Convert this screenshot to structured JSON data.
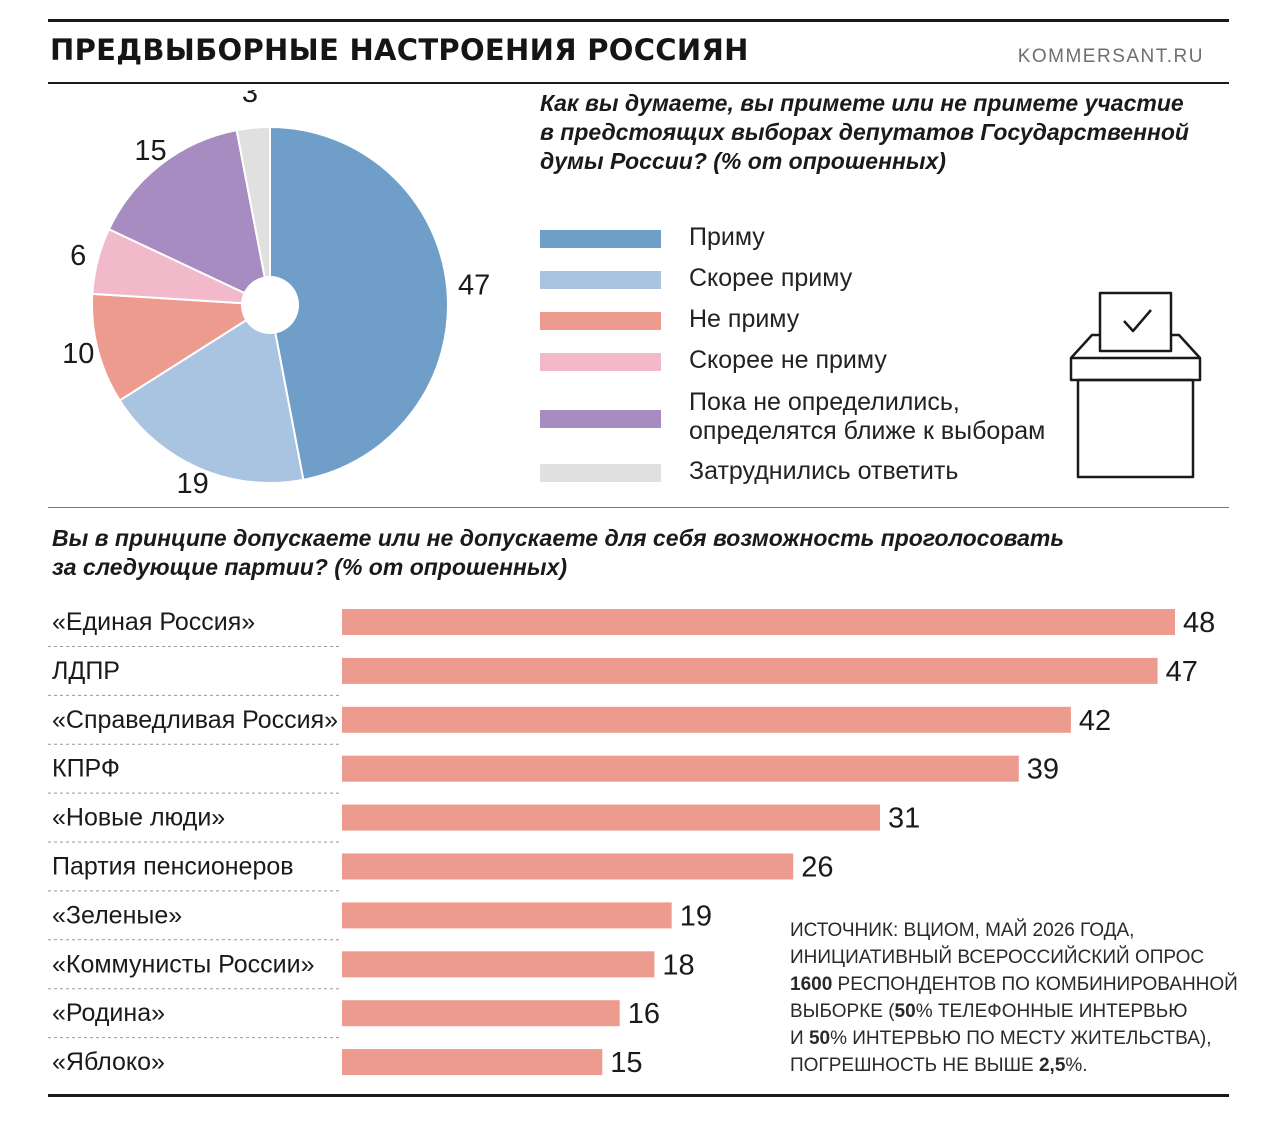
{
  "header": {
    "title": "ПРЕДВЫБОРНЫЕ НАСТРОЕНИЯ РОССИЯН",
    "source_site": "KOMMERSANT.RU"
  },
  "colors": {
    "primu": "#6f9ec9",
    "skoree_primu": "#a9c4e0",
    "ne_primu": "#ed9b8e",
    "skoree_ne_primu": "#f1b9ca",
    "ne_opredelilis": "#a68cc0",
    "zatrudnilis": "#e0e0e1",
    "bars": "#ed9b8e",
    "rule": "#1a1a1a"
  },
  "chart_data": [
    {
      "type": "pie",
      "title": "Как вы думаете, вы примете или не примете участие в предстоящих выборах депутатов Государственной думы России? (% от опрошенных)",
      "slices": [
        {
          "label": "Приму",
          "value": 47,
          "value_label": "47",
          "color": "#6f9ec9"
        },
        {
          "label": "Скорее приму",
          "value": 19,
          "value_label": "19",
          "color": "#a9c4e0"
        },
        {
          "label": "Не приму",
          "value": 10,
          "value_label": "10",
          "color": "#ed9b8e"
        },
        {
          "label": "Скорее не приму",
          "value": 6,
          "value_label": "6",
          "color": "#f1b9ca"
        },
        {
          "label": "Пока не определились, определятся ближе к выборам",
          "value": 15,
          "value_label": "15",
          "color": "#a68cc0"
        },
        {
          "label": "Затруднились ответить",
          "value": 3,
          "value_label": "3",
          "color": "#e0e0e1"
        }
      ],
      "legend": [
        {
          "lines": [
            "Приму"
          ],
          "color": "#6f9ec9"
        },
        {
          "lines": [
            "Скорее приму"
          ],
          "color": "#a9c4e0"
        },
        {
          "lines": [
            "Не приму"
          ],
          "color": "#ed9b8e"
        },
        {
          "lines": [
            "Скорее не приму"
          ],
          "color": "#f1b9ca"
        },
        {
          "lines": [
            "Пока не определились,",
            "определятся ближе к выборам"
          ],
          "color": "#a68cc0"
        },
        {
          "lines": [
            "Затруднились ответить"
          ],
          "color": "#e0e0e1"
        }
      ],
      "legend_position": "right"
    },
    {
      "type": "bar",
      "orientation": "horizontal",
      "title": "Вы в принципе допускаете или не допускаете для себя возможность проголосовать за следующие партии? (% от опрошенных)",
      "categories": [
        "«Единая Россия»",
        "ЛДПР",
        "«Справедливая Россия»",
        "КПРФ",
        "«Новые люди»",
        "Партия пенсионеров",
        "«Зеленые»",
        "«Коммунисты России»",
        "«Родина»",
        "«Яблоко»"
      ],
      "values": [
        48,
        47,
        42,
        39,
        31,
        26,
        19,
        18,
        16,
        15
      ],
      "value_labels": [
        "48",
        "47",
        "42",
        "39",
        "31",
        "26",
        "19",
        "18",
        "16",
        "15"
      ],
      "xlim": [
        0,
        48
      ],
      "color": "#ed9b8e"
    }
  ],
  "questions": {
    "q1_lines": [
      "Как вы думаете, вы примете или не примете участие",
      "в предстоящих выборах депутатов Государственной",
      "думы России? (% от опрошенных)"
    ],
    "q2_lines": [
      "Вы в принципе допускаете или не допускаете для себя возможность проголосовать",
      "за следующие партии? (% от опрошенных)"
    ]
  },
  "ballot_icon": "ballot-box-icon",
  "source_note": {
    "lines": [
      [
        {
          "t": "ИСТОЧНИК: ВЦИОМ, МАЙ 2026 ГОДА,",
          "b": false
        }
      ],
      [
        {
          "t": "ИНИЦИАТИВНЫЙ ВСЕРОССИЙСКИЙ ОПРОС",
          "b": false
        }
      ],
      [
        {
          "t": "1600",
          "b": true
        },
        {
          "t": " РЕСПОНДЕНТОВ ПО КОМБИНИРОВАННОЙ",
          "b": false
        }
      ],
      [
        {
          "t": "ВЫБОРКЕ (",
          "b": false
        },
        {
          "t": "50",
          "b": true
        },
        {
          "t": "% ТЕЛЕФОННЫЕ ИНТЕРВЬЮ",
          "b": false
        }
      ],
      [
        {
          "t": "И ",
          "b": false
        },
        {
          "t": "50",
          "b": true
        },
        {
          "t": "% ИНТЕРВЬЮ ПО МЕСТУ ЖИТЕЛЬСТВА),",
          "b": false
        }
      ],
      [
        {
          "t": "ПОГРЕШНОСТЬ НЕ ВЫШЕ ",
          "b": false
        },
        {
          "t": "2,5",
          "b": true
        },
        {
          "t": "%.",
          "b": false
        }
      ]
    ]
  }
}
